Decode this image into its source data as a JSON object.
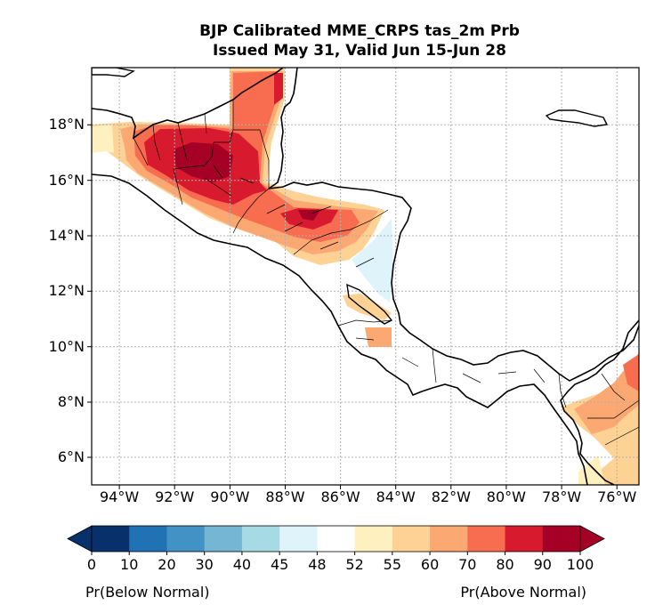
{
  "title": {
    "line1": "BJP Calibrated MME_CRPS tas_2m Prb",
    "line2": "Issued May 31, Valid Jun 15-Jun 28"
  },
  "map": {
    "lon_range": [
      -95.0,
      -75.2
    ],
    "lat_range": [
      5.0,
      20.0
    ],
    "lon_ticks": [
      "94°W",
      "92°W",
      "90°W",
      "88°W",
      "86°W",
      "84°W",
      "82°W",
      "80°W",
      "78°W",
      "76°W"
    ],
    "lat_ticks": [
      "6°N",
      "8°N",
      "10°N",
      "12°N",
      "14°N",
      "16°N",
      "18°N"
    ],
    "grid": "dotted",
    "variable": "2m temperature tercile probability"
  },
  "colorbar": {
    "tick_labels": [
      "0",
      "10",
      "20",
      "30",
      "40",
      "45",
      "48",
      "52",
      "55",
      "60",
      "70",
      "80",
      "90",
      "100"
    ],
    "colors": [
      "#08306b",
      "#2171b5",
      "#4292c6",
      "#74b6d4",
      "#a6dbe5",
      "#dff3fb",
      "#ffffff",
      "#fff0bf",
      "#fdd294",
      "#fca872",
      "#f86d50",
      "#d81a2e",
      "#a50026"
    ],
    "left_label": "Pr(Below Normal)",
    "right_label": "Pr(Above Normal)",
    "extend": "both"
  },
  "probability_regions": [
    {
      "category": "90-100",
      "area": "Guatemala (Petén)"
    },
    {
      "category": "80-90",
      "area": "southern Mexico / Guatemala / Honduras"
    },
    {
      "category": "80-90",
      "area": "northern Honduras"
    },
    {
      "category": "70-80",
      "area": "Yucatán / Belize"
    },
    {
      "category": "45-48",
      "area": "eastern Nicaragua"
    },
    {
      "category": "55-70",
      "area": "Colombia"
    }
  ]
}
